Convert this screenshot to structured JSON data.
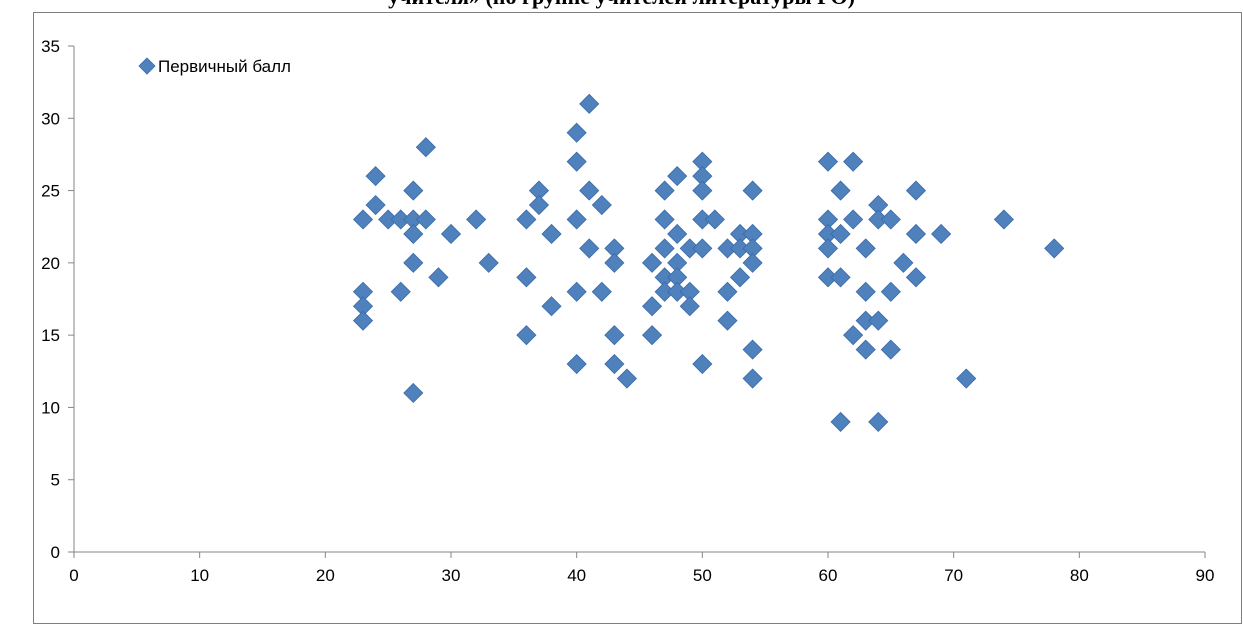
{
  "chart_data": {
    "type": "scatter",
    "title": "учителя» (по группе учителей литературы РО)",
    "xlabel": "",
    "ylabel": "",
    "xlim": [
      0,
      90
    ],
    "ylim": [
      0,
      35
    ],
    "x_ticks": [
      0,
      10,
      20,
      30,
      40,
      50,
      60,
      70,
      80,
      90
    ],
    "y_ticks": [
      0,
      5,
      10,
      15,
      20,
      25,
      30,
      35
    ],
    "grid": false,
    "legend_position": "top-left",
    "series": [
      {
        "name": "Первичный балл",
        "color": "#4f81bd",
        "marker": "diamond",
        "points": [
          [
            23,
            23
          ],
          [
            23,
            18
          ],
          [
            23,
            17
          ],
          [
            23,
            16
          ],
          [
            24,
            26
          ],
          [
            24,
            24
          ],
          [
            25,
            23
          ],
          [
            26,
            23
          ],
          [
            26,
            18
          ],
          [
            27,
            25
          ],
          [
            27,
            23
          ],
          [
            27,
            22
          ],
          [
            27,
            20
          ],
          [
            27,
            11
          ],
          [
            28,
            28
          ],
          [
            28,
            23
          ],
          [
            29,
            19
          ],
          [
            30,
            22
          ],
          [
            32,
            23
          ],
          [
            33,
            20
          ],
          [
            36,
            23
          ],
          [
            36,
            19
          ],
          [
            36,
            15
          ],
          [
            37,
            25
          ],
          [
            37,
            24
          ],
          [
            38,
            22
          ],
          [
            38,
            17
          ],
          [
            40,
            29
          ],
          [
            40,
            27
          ],
          [
            40,
            23
          ],
          [
            40,
            18
          ],
          [
            40,
            13
          ],
          [
            41,
            31
          ],
          [
            41,
            25
          ],
          [
            41,
            21
          ],
          [
            42,
            24
          ],
          [
            42,
            18
          ],
          [
            43,
            21
          ],
          [
            43,
            20
          ],
          [
            43,
            15
          ],
          [
            43,
            13
          ],
          [
            44,
            12
          ],
          [
            46,
            20
          ],
          [
            46,
            17
          ],
          [
            46,
            15
          ],
          [
            47,
            25
          ],
          [
            47,
            23
          ],
          [
            47,
            21
          ],
          [
            47,
            19
          ],
          [
            47,
            18
          ],
          [
            48,
            26
          ],
          [
            48,
            22
          ],
          [
            48,
            20
          ],
          [
            48,
            19
          ],
          [
            48,
            18
          ],
          [
            49,
            21
          ],
          [
            49,
            18
          ],
          [
            49,
            17
          ],
          [
            50,
            27
          ],
          [
            50,
            26
          ],
          [
            50,
            25
          ],
          [
            50,
            23
          ],
          [
            50,
            21
          ],
          [
            50,
            13
          ],
          [
            51,
            23
          ],
          [
            52,
            21
          ],
          [
            52,
            18
          ],
          [
            52,
            16
          ],
          [
            53,
            22
          ],
          [
            53,
            21
          ],
          [
            53,
            19
          ],
          [
            54,
            25
          ],
          [
            54,
            22
          ],
          [
            54,
            21
          ],
          [
            54,
            20
          ],
          [
            54,
            14
          ],
          [
            54,
            12
          ],
          [
            60,
            27
          ],
          [
            60,
            23
          ],
          [
            60,
            22
          ],
          [
            60,
            21
          ],
          [
            60,
            19
          ],
          [
            61,
            25
          ],
          [
            61,
            22
          ],
          [
            61,
            19
          ],
          [
            61,
            9
          ],
          [
            62,
            27
          ],
          [
            62,
            23
          ],
          [
            62,
            15
          ],
          [
            63,
            21
          ],
          [
            63,
            18
          ],
          [
            63,
            16
          ],
          [
            63,
            14
          ],
          [
            64,
            24
          ],
          [
            64,
            23
          ],
          [
            64,
            16
          ],
          [
            64,
            9
          ],
          [
            65,
            23
          ],
          [
            65,
            18
          ],
          [
            65,
            14
          ],
          [
            66,
            20
          ],
          [
            67,
            25
          ],
          [
            67,
            22
          ],
          [
            67,
            19
          ],
          [
            69,
            22
          ],
          [
            71,
            12
          ],
          [
            74,
            23
          ],
          [
            78,
            21
          ]
        ]
      }
    ]
  }
}
